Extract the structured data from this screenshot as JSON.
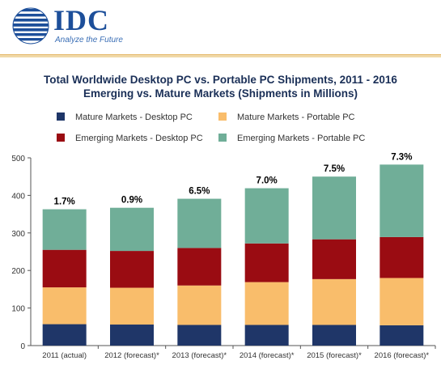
{
  "header": {
    "logo_text": "IDC",
    "tagline": "Analyze the Future"
  },
  "colors": {
    "brand": "#1d4f9a",
    "divider": "#e4b868"
  },
  "chart_data": {
    "type": "bar",
    "stacked": true,
    "title_line1": "Total Worldwide Desktop PC vs. Portable PC Shipments, 2011 - 2016",
    "title_line2": "Emerging vs. Mature Markets (Shipments in Millions)",
    "categories": [
      "2011 (actual)",
      "2012 (forecast)*",
      "2013 (forecast)*",
      "2014 (forecast)*",
      "2015 (forecast)*",
      "2016 (forecast)*"
    ],
    "series": [
      {
        "name": "Mature Markets - Desktop PC",
        "color": "#1f3668",
        "values": [
          57,
          56,
          55,
          55,
          55,
          54
        ]
      },
      {
        "name": "Mature Markets - Portable PC",
        "color": "#f9bd6b",
        "values": [
          98,
          98,
          105,
          114,
          122,
          126
        ]
      },
      {
        "name": "Emerging Markets - Desktop PC",
        "color": "#9a0c12",
        "values": [
          100,
          98,
          100,
          103,
          106,
          109
        ]
      },
      {
        "name": "Emerging Markets - Portable PC",
        "color": "#70ae98",
        "values": [
          108,
          115,
          131,
          147,
          167,
          193
        ]
      }
    ],
    "growth_labels": [
      "1.7%",
      "0.9%",
      "6.5%",
      "7.0%",
      "7.5%",
      "7.3%"
    ],
    "yticks": [
      0,
      100,
      200,
      300,
      400,
      500
    ],
    "ylim": [
      0,
      500
    ],
    "grid": false,
    "legend_position": "top"
  }
}
